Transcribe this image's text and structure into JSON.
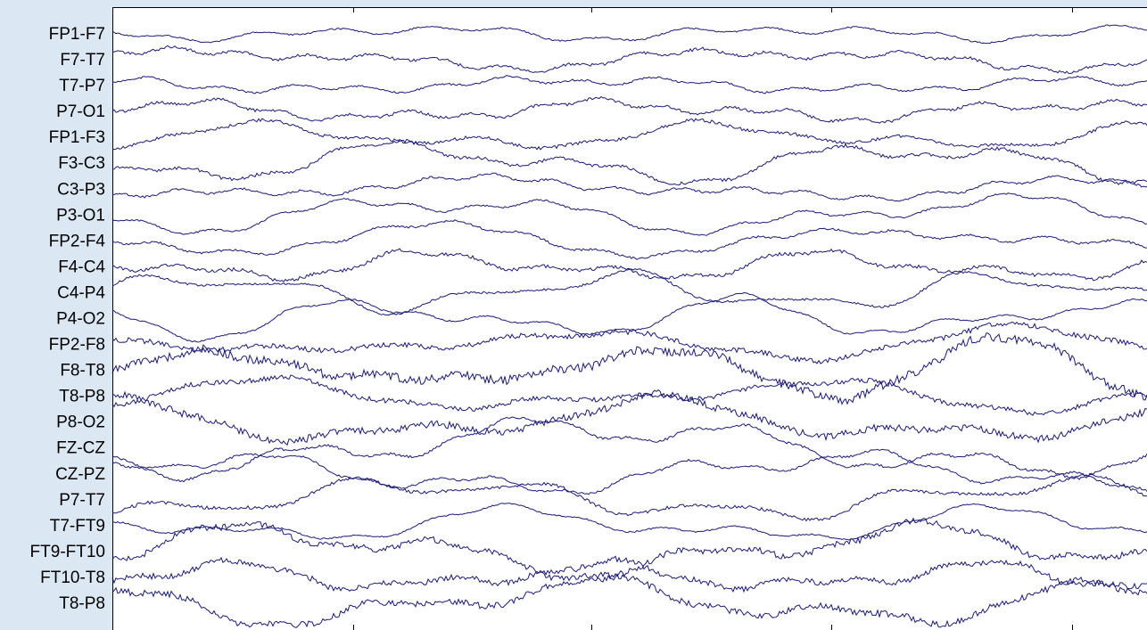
{
  "chart_data": {
    "type": "line",
    "title": "",
    "xlabel": "",
    "ylabel": "",
    "grid": false,
    "legend": "none",
    "x_ticks": 5,
    "channels": [
      "FP1-F7",
      "F7-T7",
      "T7-P7",
      "P7-O1",
      "FP1-F3",
      "F3-C3",
      "C3-P3",
      "P3-O1",
      "FP2-F4",
      "F4-C4",
      "C4-P4",
      "P4-O2",
      "FP2-F8",
      "F8-T8",
      "T8-P8",
      "P8-O2",
      "FZ-CZ",
      "CZ-PZ",
      "P7-T7",
      "T7-FT9",
      "FT9-FT10",
      "FT10-T8",
      "T8-P8"
    ]
  },
  "colors": {
    "trace": "#1a1a7a",
    "plot_background": "#ffffff",
    "panel_background": "#dbe8f3",
    "axis": "#000000"
  }
}
